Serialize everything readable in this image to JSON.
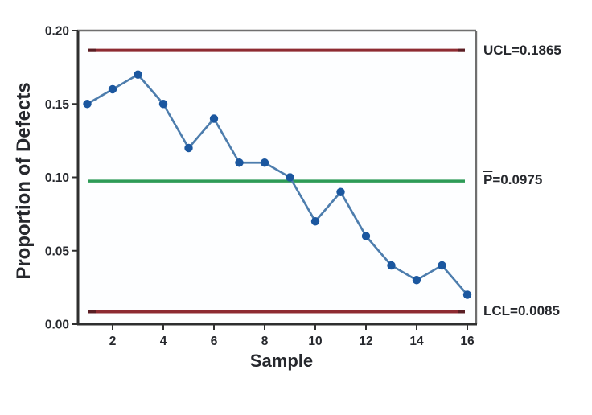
{
  "labels": {
    "ucl": "UCL=0.1865",
    "center_prefix": "P",
    "center_rest": "=0.0975",
    "lcl": "LCL=0.0085"
  },
  "chart_data": {
    "type": "line",
    "subtype": "p-control-chart",
    "title": "",
    "xlabel": "Sample",
    "ylabel": "Proportion of Defects",
    "x": [
      1,
      2,
      3,
      4,
      5,
      6,
      7,
      8,
      9,
      10,
      11,
      12,
      13,
      14,
      15,
      16
    ],
    "values": [
      0.15,
      0.16,
      0.17,
      0.15,
      0.12,
      0.14,
      0.11,
      0.11,
      0.1,
      0.07,
      0.09,
      0.06,
      0.04,
      0.03,
      0.04,
      0.02
    ],
    "control_limits": {
      "ucl": 0.1865,
      "center": 0.0975,
      "lcl": 0.0085
    },
    "ylim": [
      0.0,
      0.2
    ],
    "y_ticks": [
      0.0,
      0.05,
      0.1,
      0.15,
      0.2
    ],
    "y_tick_labels": [
      "0.00",
      "0.05",
      "0.10",
      "0.15",
      "0.20"
    ],
    "x_ticks": [
      2,
      4,
      6,
      8,
      10,
      12,
      14,
      16
    ],
    "grid": "off",
    "legend": "none",
    "colors": {
      "limit_line": "#8e2b32",
      "limit_line_cap": "#5a1e24",
      "center_line": "#2e9b57",
      "data_line": "#4d7dad",
      "marker": "#1b579f",
      "text": "#26282d",
      "axis_dark": "#2f2f2f",
      "border_gray": "#6f6f6f"
    }
  }
}
